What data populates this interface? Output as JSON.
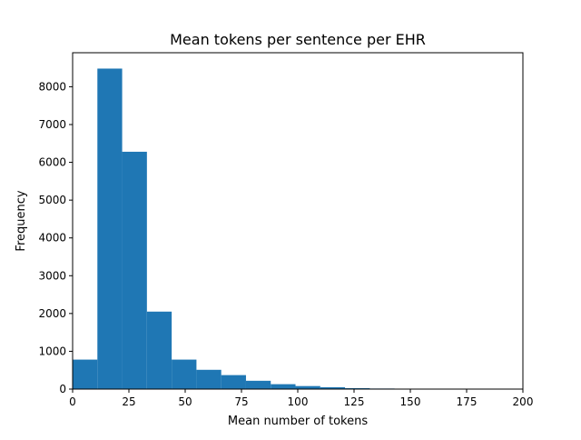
{
  "chart_data": {
    "type": "bar",
    "subtype": "histogram",
    "title": "Mean tokens per sentence per EHR",
    "xlabel": "Mean number of tokens",
    "ylabel": "Frequency",
    "xlim": [
      0,
      200
    ],
    "ylim": [
      0,
      8900
    ],
    "xticks": [
      0,
      25,
      50,
      75,
      100,
      125,
      150,
      175,
      200
    ],
    "yticks": [
      0,
      1000,
      2000,
      3000,
      4000,
      5000,
      6000,
      7000,
      8000
    ],
    "grid": false,
    "legend": "none",
    "bar_color": "#1f77b4",
    "bins": [
      {
        "x0": 0,
        "x1": 11,
        "value": 780
      },
      {
        "x0": 11,
        "x1": 22,
        "value": 8480
      },
      {
        "x0": 22,
        "x1": 33,
        "value": 6280
      },
      {
        "x0": 33,
        "x1": 44,
        "value": 2050
      },
      {
        "x0": 44,
        "x1": 55,
        "value": 780
      },
      {
        "x0": 55,
        "x1": 66,
        "value": 510
      },
      {
        "x0": 66,
        "x1": 77,
        "value": 370
      },
      {
        "x0": 77,
        "x1": 88,
        "value": 220
      },
      {
        "x0": 88,
        "x1": 99,
        "value": 130
      },
      {
        "x0": 99,
        "x1": 110,
        "value": 80
      },
      {
        "x0": 110,
        "x1": 121,
        "value": 50
      },
      {
        "x0": 121,
        "x1": 132,
        "value": 25
      },
      {
        "x0": 132,
        "x1": 143,
        "value": 15
      },
      {
        "x0": 143,
        "x1": 154,
        "value": 8
      },
      {
        "x0": 154,
        "x1": 165,
        "value": 12
      },
      {
        "x0": 165,
        "x1": 176,
        "value": 5
      },
      {
        "x0": 176,
        "x1": 187,
        "value": 10
      },
      {
        "x0": 187,
        "x1": 198,
        "value": 10
      }
    ]
  }
}
